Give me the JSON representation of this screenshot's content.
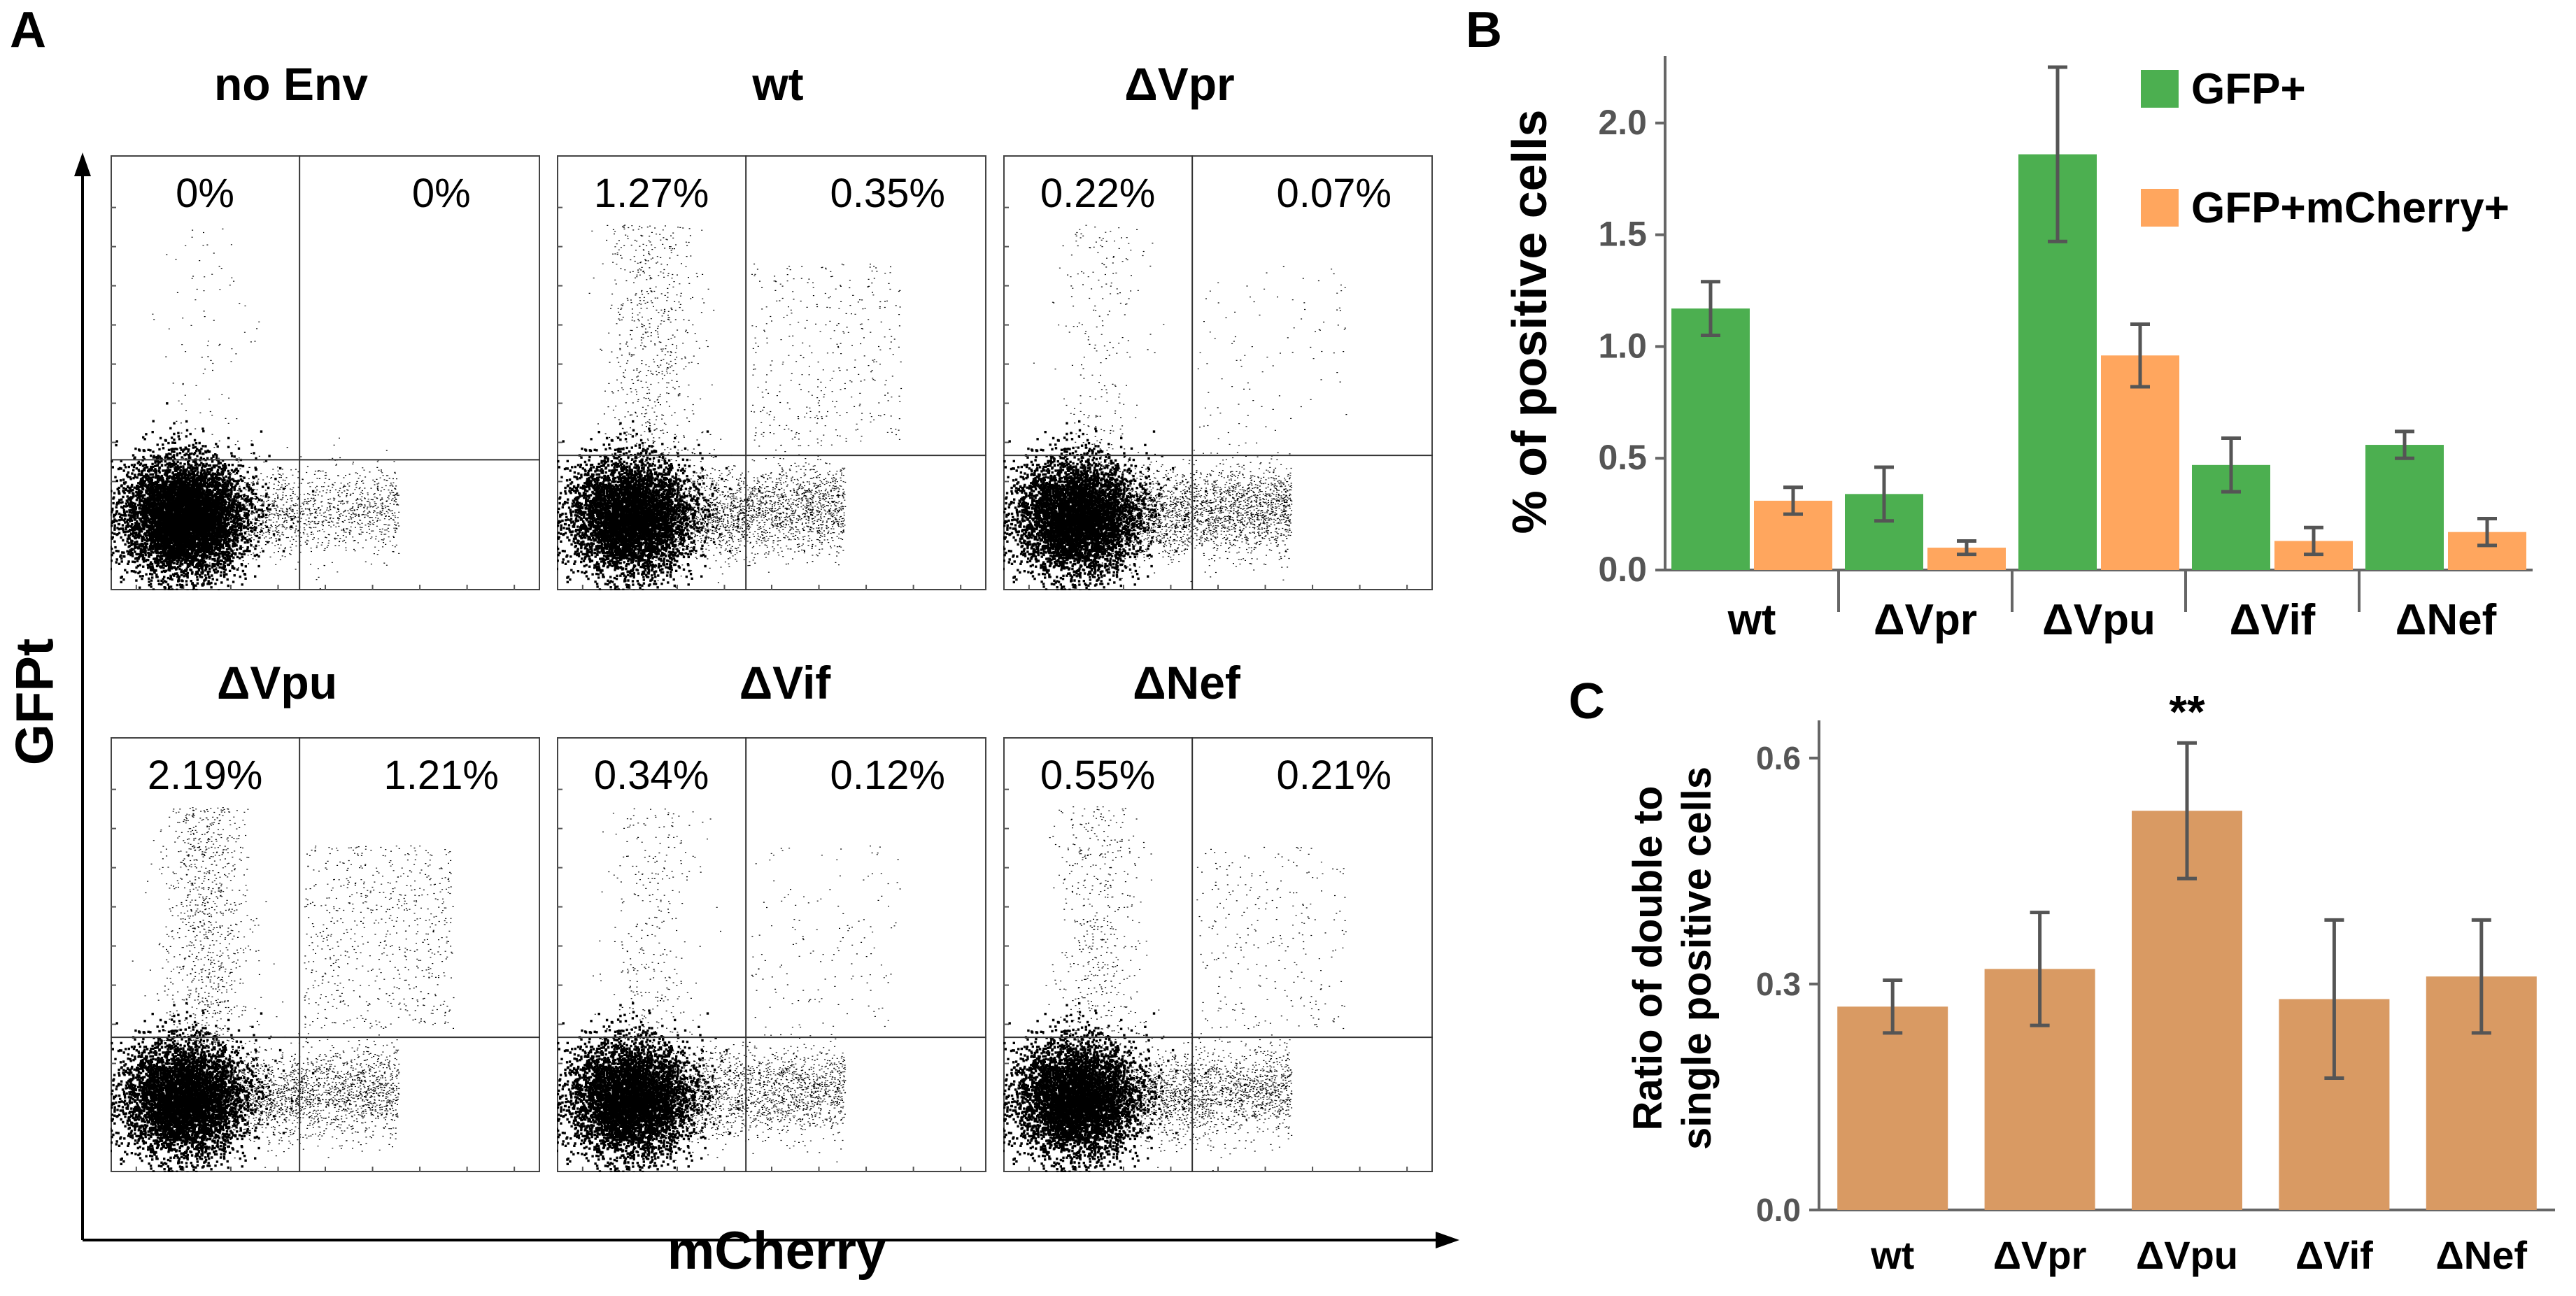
{
  "panel_labels": {
    "a": "A",
    "b": "B",
    "c": "C"
  },
  "flow": {
    "y_label": "GFPt",
    "x_label": "mCherry",
    "plots": [
      {
        "title": "no Env",
        "left": "0%",
        "right": "0%"
      },
      {
        "title": "wt",
        "left": "1.27%",
        "right": "0.35%"
      },
      {
        "title": "ΔVpr",
        "left": "0.22%",
        "right": "0.07%"
      },
      {
        "title": "ΔVpu",
        "left": "2.19%",
        "right": "1.21%"
      },
      {
        "title": "ΔVif",
        "left": "0.34%",
        "right": "0.12%"
      },
      {
        "title": "ΔNef",
        "left": "0.55%",
        "right": "0.21%"
      }
    ]
  },
  "chart_data": [
    {
      "type": "bar",
      "panel": "B",
      "title": "",
      "ylabel": "% of positive cells",
      "xlabel": "",
      "categories": [
        "wt",
        "ΔVpr",
        "ΔVpu",
        "ΔVif",
        "ΔNef"
      ],
      "yticks": [
        "0.0",
        "0.5",
        "1.0",
        "1.5",
        "2.0"
      ],
      "ylim": [
        0,
        2.3
      ],
      "series": [
        {
          "name": "GFP+",
          "color": "#4caf50",
          "values": [
            1.17,
            0.34,
            1.86,
            0.47,
            0.56
          ],
          "errors": [
            0.12,
            0.12,
            0.39,
            0.12,
            0.06
          ]
        },
        {
          "name": "GFP+mCherry+",
          "color": "#ffa65e",
          "values": [
            0.31,
            0.1,
            0.96,
            0.13,
            0.17
          ],
          "errors": [
            0.06,
            0.03,
            0.14,
            0.06,
            0.06
          ]
        }
      ]
    },
    {
      "type": "bar",
      "panel": "C",
      "title": "",
      "ylabel_line1": "Ratio of double to",
      "ylabel_line2": "single positive cells",
      "xlabel": "",
      "categories": [
        "wt",
        "ΔVpr",
        "ΔVpu",
        "ΔVif",
        "ΔNef"
      ],
      "yticks": [
        "0.0",
        "0.3",
        "0.6"
      ],
      "ylim": [
        0,
        0.65
      ],
      "annotation": "**",
      "series": [
        {
          "name": "ratio",
          "color": "#d99a63",
          "values": [
            0.27,
            0.32,
            0.53,
            0.28,
            0.31
          ],
          "errors": [
            0.035,
            0.075,
            0.09,
            0.105,
            0.075
          ]
        }
      ]
    }
  ]
}
